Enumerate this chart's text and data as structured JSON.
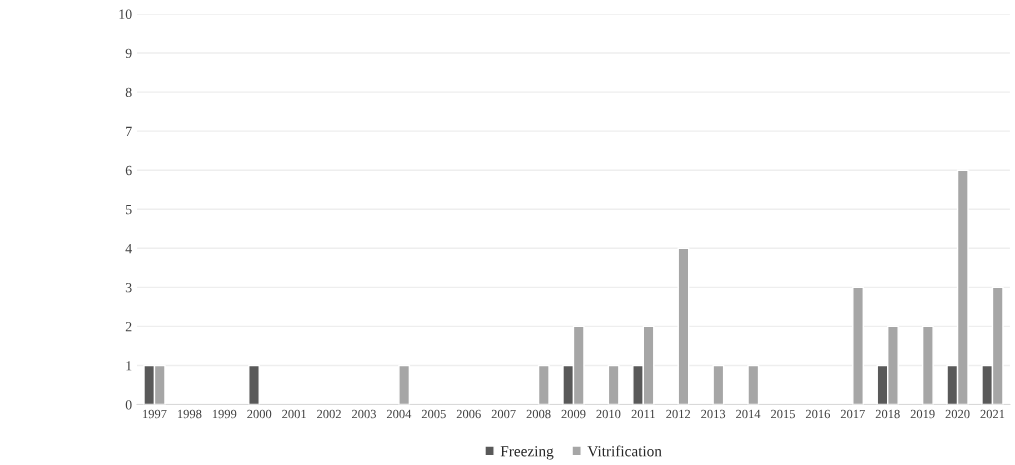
{
  "chart_data": {
    "type": "bar",
    "categories": [
      "1997",
      "1998",
      "1999",
      "2000",
      "2001",
      "2002",
      "2003",
      "2004",
      "2005",
      "2006",
      "2007",
      "2008",
      "2009",
      "2010",
      "2011",
      "2012",
      "2013",
      "2014",
      "2015",
      "2016",
      "2017",
      "2018",
      "2019",
      "2020",
      "2021"
    ],
    "series": [
      {
        "name": "Freezing",
        "color": "#595959",
        "values": [
          1,
          null,
          null,
          1,
          null,
          null,
          null,
          null,
          null,
          null,
          null,
          null,
          1,
          null,
          1,
          null,
          null,
          null,
          null,
          null,
          null,
          1,
          null,
          1,
          1
        ]
      },
      {
        "name": "Vitrification",
        "color": "#a6a6a6",
        "values": [
          1,
          null,
          null,
          null,
          null,
          null,
          null,
          1,
          null,
          null,
          null,
          1,
          2,
          1,
          2,
          4,
          1,
          1,
          null,
          null,
          3,
          2,
          2,
          6,
          3
        ]
      }
    ],
    "ylim": [
      0,
      10
    ],
    "yticks": [
      0,
      1,
      2,
      3,
      4,
      5,
      6,
      7,
      8,
      9,
      10
    ],
    "grid": "y",
    "legend": "bottom"
  }
}
